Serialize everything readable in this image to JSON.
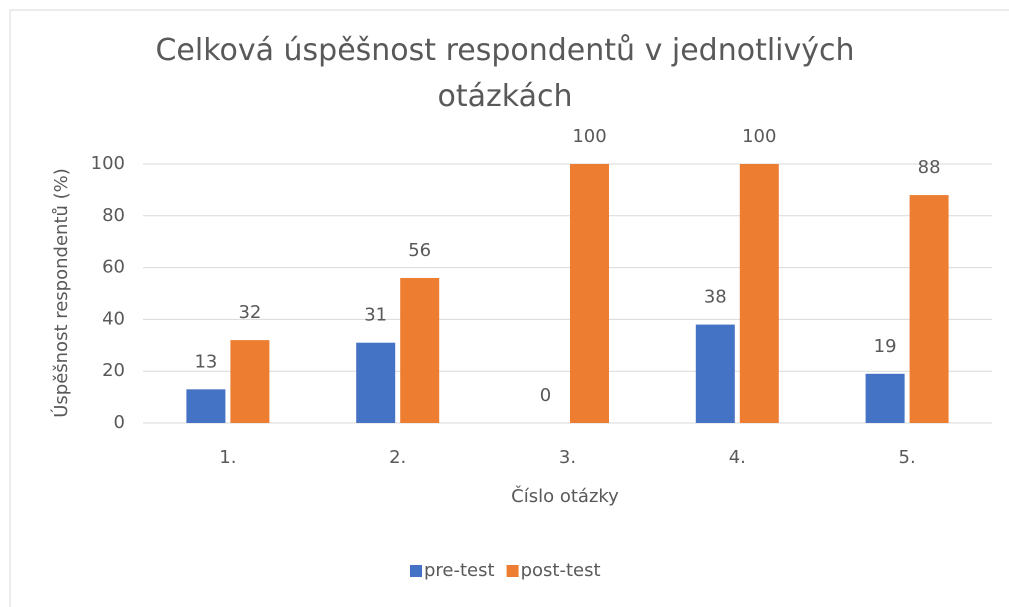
{
  "chart_data": {
    "type": "bar",
    "title": "Celková úspěšnost respondentů v jednotlivých otázkách",
    "x_label": "Číslo otázky",
    "y_label": "Úspěšnost respondentů (%)",
    "categories": [
      "1.",
      "2.",
      "3.",
      "4.",
      "5."
    ],
    "series": [
      {
        "name": "pre-test",
        "color": "#4472c4",
        "values": [
          13,
          31,
          0,
          38,
          19
        ]
      },
      {
        "name": "post-test",
        "color": "#ed7d31",
        "values": [
          32,
          56,
          100,
          100,
          88
        ]
      }
    ],
    "ylim": [
      0,
      100
    ],
    "yticks": [
      0,
      20,
      40,
      60,
      80,
      100
    ],
    "grid": true,
    "legend": "bottom"
  }
}
